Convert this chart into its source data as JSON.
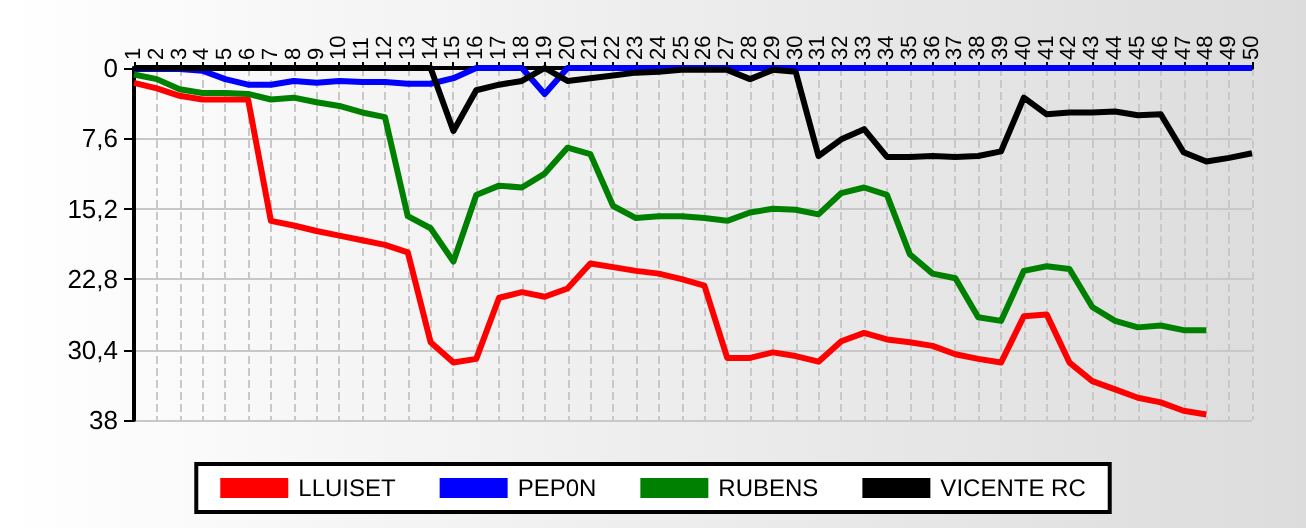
{
  "chart_data": {
    "type": "line",
    "categories": [
      "1",
      "2",
      "3",
      "4",
      "5",
      "6",
      "7",
      "8",
      "9",
      "10",
      "11",
      "12",
      "13",
      "14",
      "15",
      "16",
      "17",
      "18",
      "19",
      "20",
      "21",
      "22",
      "23",
      "24",
      "25",
      "26",
      "27",
      "28",
      "29",
      "30",
      "31",
      "32",
      "33",
      "34",
      "35",
      "36",
      "37",
      "38",
      "39",
      "40",
      "41",
      "42",
      "43",
      "44",
      "45",
      "46",
      "47",
      "48",
      "49",
      "50"
    ],
    "ylim": [
      38,
      0
    ],
    "yticks": [
      0,
      {
        "value": 7.6,
        "label": "7,6"
      },
      {
        "value": 15.2,
        "label": "15,2"
      },
      {
        "value": 22.8,
        "label": "22,8"
      },
      {
        "value": 30.4,
        "label": "30,4"
      },
      38
    ],
    "grid": true,
    "legend": "bottom",
    "marker": "none",
    "line_style": "solid",
    "series": [
      {
        "name": "LLUISET",
        "color": "#ff0000",
        "values": [
          1.6,
          2.2,
          3.0,
          3.4,
          3.4,
          3.4,
          16.5,
          17.0,
          17.6,
          18.1,
          18.6,
          19.1,
          19.9,
          29.6,
          31.8,
          31.4,
          24.8,
          24.2,
          24.7,
          23.8,
          21.1,
          21.5,
          21.9,
          22.2,
          22.8,
          23.5,
          31.3,
          31.3,
          30.7,
          31.1,
          31.7,
          29.5,
          28.6,
          29.3,
          29.6,
          30.0,
          30.9,
          31.4,
          31.8,
          26.8,
          26.6,
          31.8,
          33.8,
          34.7,
          35.6,
          36.1,
          37.0,
          37.4,
          null,
          null
        ]
      },
      {
        "name": "PEP0N",
        "color": "#0000ff",
        "values": [
          0.1,
          0.1,
          0.1,
          0.3,
          1.2,
          1.8,
          1.8,
          1.4,
          1.6,
          1.4,
          1.5,
          1.5,
          1.7,
          1.7,
          1.1,
          0,
          0,
          0,
          2.8,
          0,
          0,
          0,
          0,
          0,
          0,
          0,
          0,
          0,
          0,
          0,
          0,
          0,
          0,
          0,
          0,
          0,
          0,
          0,
          0,
          0,
          0,
          0,
          0,
          0,
          0,
          0,
          0,
          0,
          0,
          0
        ]
      },
      {
        "name": "RUBENS",
        "color": "#008000",
        "values": [
          0.7,
          1.2,
          2.3,
          2.7,
          2.7,
          2.8,
          3.4,
          3.2,
          3.7,
          4.1,
          4.8,
          5.3,
          16.0,
          17.3,
          20.9,
          13.7,
          12.7,
          12.9,
          11.4,
          8.6,
          9.3,
          14.9,
          16.2,
          16.0,
          16.0,
          16.2,
          16.5,
          15.6,
          15.2,
          15.3,
          15.8,
          13.5,
          12.9,
          13.7,
          20.1,
          22.2,
          22.7,
          26.9,
          27.3,
          21.9,
          21.4,
          21.7,
          25.8,
          27.3,
          28.0,
          27.8,
          28.3,
          28.3,
          null,
          null
        ]
      },
      {
        "name": "VICENTE RC",
        "color": "#000000",
        "values": [
          0,
          0,
          0,
          0,
          0,
          0,
          0,
          0,
          0,
          0,
          0,
          0,
          0,
          0,
          6.8,
          2.4,
          1.8,
          1.4,
          0,
          1.4,
          1.1,
          0.8,
          0.5,
          0.4,
          0.2,
          0.2,
          0.2,
          1.2,
          0.2,
          0.4,
          9.5,
          7.7,
          6.6,
          9.6,
          9.6,
          9.5,
          9.6,
          9.5,
          9.0,
          3.2,
          5.0,
          4.8,
          4.8,
          4.7,
          5.1,
          5.0,
          9.1,
          10.1,
          9.7,
          9.2
        ]
      }
    ]
  }
}
